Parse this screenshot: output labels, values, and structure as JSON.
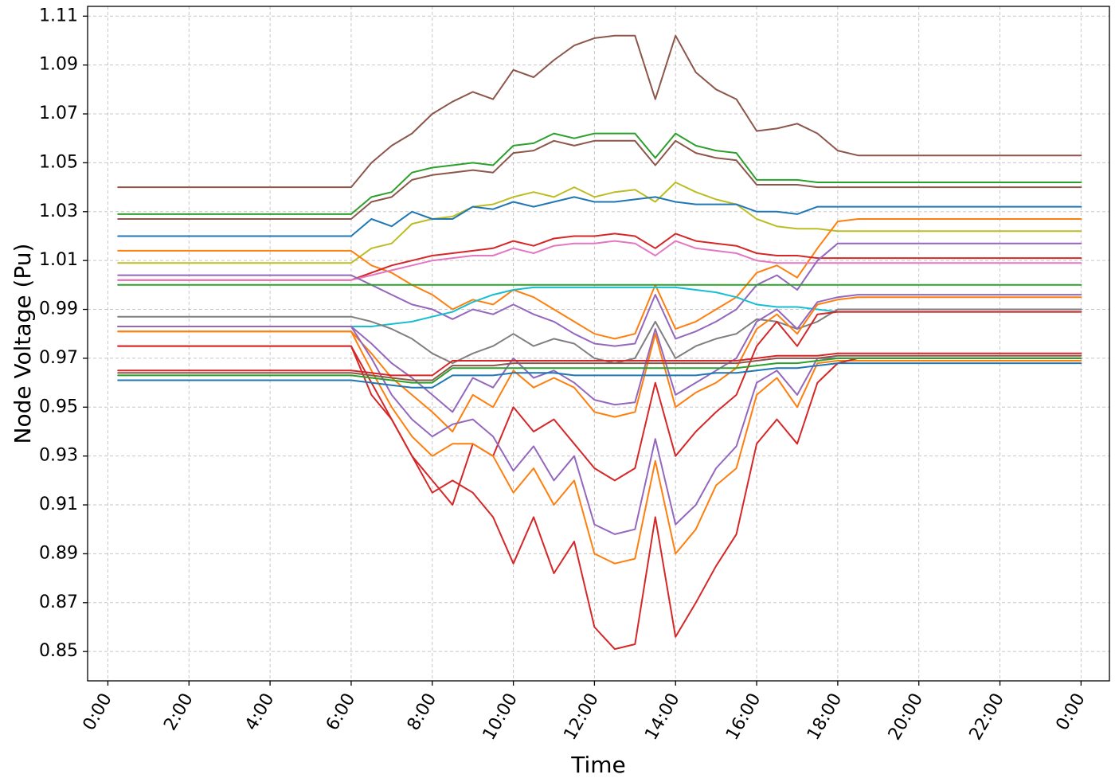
{
  "chart_data": {
    "type": "line",
    "title": "",
    "xlabel": "Time",
    "ylabel": "Node Voltage (Pu)",
    "xlim": [
      -0.5,
      24.7
    ],
    "ylim": [
      0.838,
      1.114
    ],
    "grid": true,
    "x_ticks": [
      0,
      2,
      4,
      6,
      8,
      10,
      12,
      14,
      16,
      18,
      20,
      22,
      24
    ],
    "x_tick_labels": [
      "0:00",
      "2:00",
      "4:00",
      "6:00",
      "8:00",
      "10:00",
      "12:00",
      "14:00",
      "16:00",
      "18:00",
      "20:00",
      "22:00",
      "0:00"
    ],
    "y_ticks": [
      0.85,
      0.87,
      0.89,
      0.91,
      0.93,
      0.95,
      0.97,
      0.99,
      1.01,
      1.03,
      1.05,
      1.07,
      1.09,
      1.11
    ],
    "y_tick_labels": [
      "0.85",
      "0.87",
      "0.89",
      "0.91",
      "0.93",
      "0.95",
      "0.97",
      "0.99",
      "1.01",
      "1.03",
      "1.05",
      "1.07",
      "1.09",
      "1.11"
    ],
    "x": [
      0.25,
      6,
      6.5,
      7,
      7.5,
      8,
      8.5,
      9,
      9.5,
      10,
      10.5,
      11,
      11.5,
      12,
      12.5,
      13,
      13.5,
      14,
      14.5,
      15,
      15.5,
      16,
      16.5,
      17,
      17.5,
      18,
      18.5,
      24
    ],
    "series": [
      {
        "color": "#8c564b",
        "values": [
          1.04,
          1.04,
          1.05,
          1.057,
          1.062,
          1.07,
          1.075,
          1.079,
          1.076,
          1.088,
          1.085,
          1.092,
          1.098,
          1.101,
          1.102,
          1.102,
          1.076,
          1.102,
          1.087,
          1.08,
          1.076,
          1.063,
          1.064,
          1.066,
          1.062,
          1.055,
          1.053,
          1.053
        ]
      },
      {
        "color": "#2ca02c",
        "values": [
          1.029,
          1.029,
          1.036,
          1.038,
          1.046,
          1.048,
          1.049,
          1.05,
          1.049,
          1.057,
          1.058,
          1.062,
          1.06,
          1.062,
          1.062,
          1.062,
          1.052,
          1.062,
          1.057,
          1.055,
          1.054,
          1.043,
          1.043,
          1.043,
          1.042,
          1.042,
          1.042,
          1.042
        ]
      },
      {
        "color": "#8c564b",
        "values": [
          1.027,
          1.027,
          1.034,
          1.036,
          1.043,
          1.045,
          1.046,
          1.047,
          1.046,
          1.054,
          1.055,
          1.059,
          1.057,
          1.059,
          1.059,
          1.059,
          1.049,
          1.059,
          1.054,
          1.052,
          1.051,
          1.041,
          1.041,
          1.041,
          1.04,
          1.04,
          1.04,
          1.04
        ]
      },
      {
        "color": "#bcbd22",
        "values": [
          1.009,
          1.009,
          1.015,
          1.017,
          1.025,
          1.027,
          1.028,
          1.032,
          1.033,
          1.036,
          1.038,
          1.036,
          1.04,
          1.036,
          1.038,
          1.039,
          1.034,
          1.042,
          1.038,
          1.035,
          1.033,
          1.027,
          1.024,
          1.023,
          1.023,
          1.022,
          1.022,
          1.022
        ]
      },
      {
        "color": "#1f77b4",
        "values": [
          1.02,
          1.02,
          1.027,
          1.024,
          1.03,
          1.027,
          1.027,
          1.032,
          1.031,
          1.034,
          1.032,
          1.034,
          1.036,
          1.034,
          1.034,
          1.035,
          1.036,
          1.034,
          1.033,
          1.033,
          1.033,
          1.03,
          1.03,
          1.029,
          1.032,
          1.032,
          1.032,
          1.032
        ]
      },
      {
        "color": "#ff7f0e",
        "values": [
          1.014,
          1.014,
          1.008,
          1.005,
          1.0,
          0.996,
          0.99,
          0.994,
          0.992,
          0.998,
          0.995,
          0.99,
          0.985,
          0.98,
          0.978,
          0.98,
          1.0,
          0.982,
          0.985,
          0.99,
          0.995,
          1.005,
          1.008,
          1.003,
          1.015,
          1.026,
          1.027,
          1.027
        ]
      },
      {
        "color": "#d62728",
        "values": [
          1.002,
          1.002,
          1.005,
          1.008,
          1.01,
          1.012,
          1.013,
          1.014,
          1.015,
          1.018,
          1.016,
          1.019,
          1.02,
          1.02,
          1.021,
          1.02,
          1.015,
          1.021,
          1.018,
          1.017,
          1.016,
          1.013,
          1.012,
          1.012,
          1.011,
          1.011,
          1.011,
          1.011
        ]
      },
      {
        "color": "#e377c2",
        "values": [
          1.002,
          1.002,
          1.004,
          1.006,
          1.008,
          1.01,
          1.011,
          1.012,
          1.012,
          1.015,
          1.013,
          1.016,
          1.017,
          1.017,
          1.018,
          1.017,
          1.012,
          1.018,
          1.015,
          1.014,
          1.013,
          1.01,
          1.009,
          1.009,
          1.009,
          1.009,
          1.009,
          1.009
        ]
      },
      {
        "color": "#9467bd",
        "values": [
          1.004,
          1.004,
          1.0,
          0.996,
          0.992,
          0.99,
          0.986,
          0.99,
          0.988,
          0.992,
          0.988,
          0.985,
          0.98,
          0.976,
          0.975,
          0.976,
          0.996,
          0.978,
          0.981,
          0.985,
          0.99,
          1.0,
          1.004,
          0.998,
          1.01,
          1.017,
          1.017,
          1.017
        ]
      },
      {
        "color": "#2ca02c",
        "values": [
          1.0,
          1.0,
          1.0,
          1.0,
          1.0,
          1.0,
          1.0,
          1.0,
          1.0,
          1.0,
          1.0,
          1.0,
          1.0,
          1.0,
          1.0,
          1.0,
          1.0,
          1.0,
          1.0,
          1.0,
          1.0,
          1.0,
          1.0,
          1.0,
          1.0,
          1.0,
          1.0,
          1.0
        ]
      },
      {
        "color": "#17becf",
        "values": [
          0.983,
          0.983,
          0.983,
          0.984,
          0.985,
          0.987,
          0.989,
          0.993,
          0.996,
          0.998,
          0.999,
          0.999,
          0.999,
          0.999,
          0.999,
          0.999,
          0.999,
          0.999,
          0.998,
          0.997,
          0.995,
          0.992,
          0.991,
          0.991,
          0.99,
          0.989,
          0.989,
          0.989
        ]
      },
      {
        "color": "#7f7f7f",
        "values": [
          0.987,
          0.987,
          0.985,
          0.982,
          0.978,
          0.972,
          0.968,
          0.972,
          0.975,
          0.98,
          0.975,
          0.978,
          0.976,
          0.97,
          0.968,
          0.97,
          0.985,
          0.97,
          0.975,
          0.978,
          0.98,
          0.986,
          0.985,
          0.982,
          0.985,
          0.99,
          0.99,
          0.99
        ]
      },
      {
        "color": "#9467bd",
        "values": [
          0.983,
          0.983,
          0.976,
          0.968,
          0.962,
          0.955,
          0.948,
          0.962,
          0.958,
          0.97,
          0.962,
          0.965,
          0.96,
          0.953,
          0.951,
          0.952,
          0.982,
          0.955,
          0.96,
          0.965,
          0.97,
          0.985,
          0.99,
          0.982,
          0.993,
          0.995,
          0.996,
          0.996
        ]
      },
      {
        "color": "#ff7f0e",
        "values": [
          0.981,
          0.981,
          0.972,
          0.962,
          0.955,
          0.948,
          0.94,
          0.955,
          0.95,
          0.965,
          0.958,
          0.962,
          0.958,
          0.948,
          0.946,
          0.948,
          0.98,
          0.95,
          0.956,
          0.96,
          0.966,
          0.982,
          0.988,
          0.98,
          0.992,
          0.994,
          0.995,
          0.995
        ]
      },
      {
        "color": "#d62728",
        "values": [
          0.975,
          0.975,
          0.96,
          0.945,
          0.93,
          0.92,
          0.91,
          0.935,
          0.93,
          0.95,
          0.94,
          0.945,
          0.935,
          0.925,
          0.92,
          0.925,
          0.96,
          0.93,
          0.94,
          0.948,
          0.955,
          0.975,
          0.985,
          0.975,
          0.988,
          0.989,
          0.989,
          0.989
        ]
      },
      {
        "color": "#9467bd",
        "values": [
          0.983,
          0.983,
          0.97,
          0.955,
          0.945,
          0.938,
          0.943,
          0.945,
          0.938,
          0.924,
          0.934,
          0.92,
          0.93,
          0.902,
          0.898,
          0.9,
          0.937,
          0.902,
          0.91,
          0.925,
          0.934,
          0.96,
          0.965,
          0.955,
          0.97,
          0.97,
          0.97,
          0.97
        ]
      },
      {
        "color": "#ff7f0e",
        "values": [
          0.981,
          0.981,
          0.965,
          0.95,
          0.938,
          0.93,
          0.935,
          0.935,
          0.93,
          0.915,
          0.925,
          0.91,
          0.92,
          0.89,
          0.886,
          0.888,
          0.928,
          0.89,
          0.9,
          0.918,
          0.925,
          0.955,
          0.962,
          0.95,
          0.968,
          0.969,
          0.969,
          0.969
        ]
      },
      {
        "color": "#d62728",
        "values": [
          0.975,
          0.975,
          0.955,
          0.945,
          0.93,
          0.915,
          0.92,
          0.915,
          0.905,
          0.886,
          0.905,
          0.882,
          0.895,
          0.86,
          0.851,
          0.853,
          0.905,
          0.856,
          0.87,
          0.885,
          0.898,
          0.935,
          0.945,
          0.935,
          0.96,
          0.968,
          0.97,
          0.97
        ]
      },
      {
        "color": "#d62728",
        "values": [
          0.965,
          0.965,
          0.964,
          0.963,
          0.963,
          0.963,
          0.969,
          0.969,
          0.969,
          0.969,
          0.969,
          0.969,
          0.969,
          0.969,
          0.969,
          0.969,
          0.969,
          0.969,
          0.969,
          0.969,
          0.969,
          0.97,
          0.971,
          0.971,
          0.971,
          0.972,
          0.972,
          0.972
        ]
      },
      {
        "color": "#8c564b",
        "values": [
          0.964,
          0.964,
          0.963,
          0.962,
          0.961,
          0.961,
          0.967,
          0.967,
          0.967,
          0.968,
          0.968,
          0.968,
          0.968,
          0.968,
          0.968,
          0.968,
          0.968,
          0.968,
          0.968,
          0.968,
          0.968,
          0.969,
          0.97,
          0.97,
          0.97,
          0.971,
          0.971,
          0.971
        ]
      },
      {
        "color": "#2ca02c",
        "values": [
          0.963,
          0.963,
          0.962,
          0.961,
          0.96,
          0.96,
          0.966,
          0.966,
          0.966,
          0.966,
          0.966,
          0.966,
          0.966,
          0.966,
          0.966,
          0.966,
          0.966,
          0.966,
          0.966,
          0.966,
          0.966,
          0.967,
          0.968,
          0.968,
          0.969,
          0.97,
          0.97,
          0.97
        ]
      },
      {
        "color": "#1f77b4",
        "values": [
          0.961,
          0.961,
          0.96,
          0.959,
          0.958,
          0.958,
          0.963,
          0.963,
          0.963,
          0.964,
          0.964,
          0.964,
          0.963,
          0.963,
          0.963,
          0.963,
          0.963,
          0.963,
          0.963,
          0.964,
          0.964,
          0.965,
          0.966,
          0.966,
          0.967,
          0.968,
          0.968,
          0.968
        ]
      }
    ]
  }
}
